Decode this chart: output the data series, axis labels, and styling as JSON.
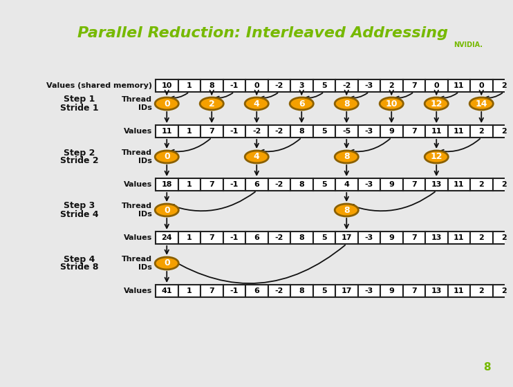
{
  "title": "Parallel Reduction: Interleaved Addressing",
  "title_color": "#76b900",
  "bg_color": "#f0f0f0",
  "shared_memory_label": "Values (shared memory)",
  "shared_memory_values": [
    10,
    1,
    8,
    -1,
    0,
    -2,
    3,
    5,
    -2,
    -3,
    2,
    7,
    0,
    11,
    0,
    2
  ],
  "steps": [
    {
      "step_label": "Step 1\nStride 1",
      "thread_ids": [
        0,
        2,
        4,
        6,
        8,
        10,
        12,
        14
      ],
      "values": [
        11,
        1,
        7,
        -1,
        -2,
        -2,
        8,
        5,
        -5,
        -3,
        9,
        7,
        11,
        11,
        2,
        2
      ],
      "stride": 1
    },
    {
      "step_label": "Step 2\nStride 2",
      "thread_ids": [
        0,
        4,
        8,
        12
      ],
      "values": [
        18,
        1,
        7,
        -1,
        6,
        -2,
        8,
        5,
        4,
        -3,
        9,
        7,
        13,
        11,
        2,
        2
      ],
      "stride": 2
    },
    {
      "step_label": "Step 3\nStride 4",
      "thread_ids": [
        0,
        8
      ],
      "values": [
        24,
        1,
        7,
        -1,
        6,
        -2,
        8,
        5,
        17,
        -3,
        9,
        7,
        13,
        11,
        2,
        2
      ],
      "stride": 4
    },
    {
      "step_label": "Step 4\nStride 8",
      "thread_ids": [
        0
      ],
      "values": [
        41,
        1,
        7,
        -1,
        6,
        -2,
        8,
        5,
        17,
        -3,
        9,
        7,
        13,
        11,
        2,
        2
      ],
      "stride": 8
    }
  ],
  "ellipse_color": "#f5a000",
  "ellipse_edge": "#8b6000",
  "arrow_color": "#111111",
  "label_color": "#111111",
  "num_cells": 16,
  "page_number": "8"
}
